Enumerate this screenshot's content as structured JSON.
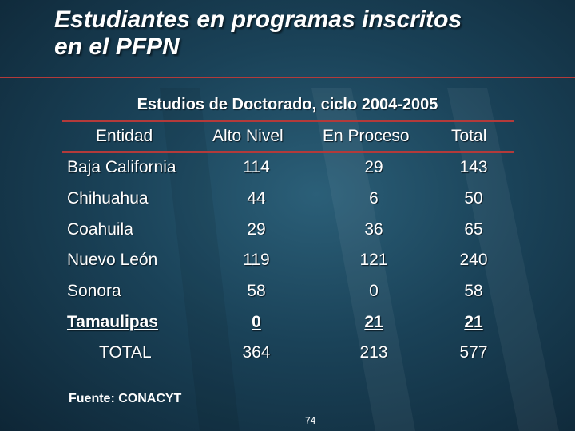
{
  "slide": {
    "title_line1": "Estudiantes en programas inscritos",
    "title_line2": "en el PFPN",
    "subtitle": "Estudios de Doctorado, ciclo 2004-2005",
    "accent_color": "#b33a3a",
    "background_color": "#1a4258"
  },
  "table": {
    "headers": [
      "Entidad",
      "Alto Nivel",
      "En Proceso",
      "Total"
    ],
    "rows": [
      {
        "entidad": "Baja California",
        "alto": "114",
        "proceso": "29",
        "total": "143"
      },
      {
        "entidad": "Chihuahua",
        "alto": "44",
        "proceso": "6",
        "total": "50"
      },
      {
        "entidad": "Coahuila",
        "alto": "29",
        "proceso": "36",
        "total": "65"
      },
      {
        "entidad": "Nuevo León",
        "alto": "119",
        "proceso": "121",
        "total": "240"
      },
      {
        "entidad": "Sonora",
        "alto": "58",
        "proceso": "0",
        "total": "58"
      },
      {
        "entidad": "Tamaulipas",
        "alto": "0",
        "proceso": "21",
        "total": "21"
      }
    ],
    "total_row": {
      "entidad": "TOTAL",
      "alto": "364",
      "proceso": "213",
      "total": "577"
    }
  },
  "footer": {
    "source": "Fuente: CONACYT",
    "page_number": "74"
  }
}
